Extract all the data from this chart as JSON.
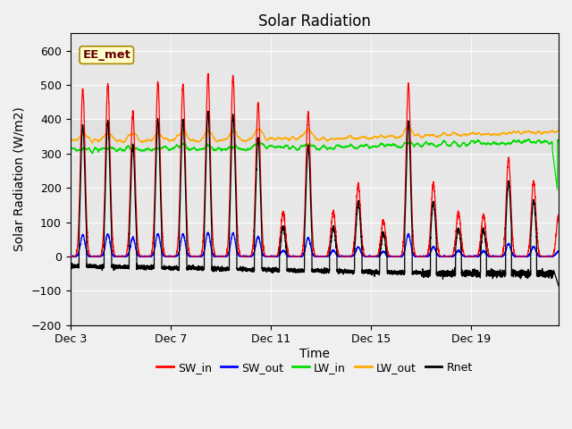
{
  "title": "Solar Radiation",
  "ylabel": "Solar Radiation (W/m2)",
  "xlabel": "Time",
  "ylim": [
    -200,
    650
  ],
  "yticks": [
    -200,
    -100,
    0,
    100,
    200,
    300,
    400,
    500,
    600
  ],
  "xtick_positions": [
    0,
    4,
    8,
    12,
    16
  ],
  "xtick_labels": [
    "Dec 3",
    "Dec 7",
    "Dec 11",
    "Dec 15",
    "Dec 19"
  ],
  "fig_bg_color": "#f0f0f0",
  "ax_bg_color": "#e8e8e8",
  "legend_label": "EE_met",
  "series_colors": {
    "SW_in": "#ff0000",
    "SW_out": "#0000ff",
    "LW_in": "#00dd00",
    "LW_out": "#ffaa00",
    "Rnet": "#000000"
  },
  "n_days": 20,
  "ppd": 288,
  "sw_peaks": [
    490,
    500,
    420,
    505,
    500,
    530,
    525,
    445,
    130,
    420,
    130,
    210,
    105,
    500,
    215,
    130,
    120,
    285,
    220,
    120
  ],
  "lw_in_base": 315,
  "lw_out_base": 340,
  "title_fontsize": 12,
  "label_fontsize": 10,
  "tick_fontsize": 9,
  "legend_fontsize": 9
}
